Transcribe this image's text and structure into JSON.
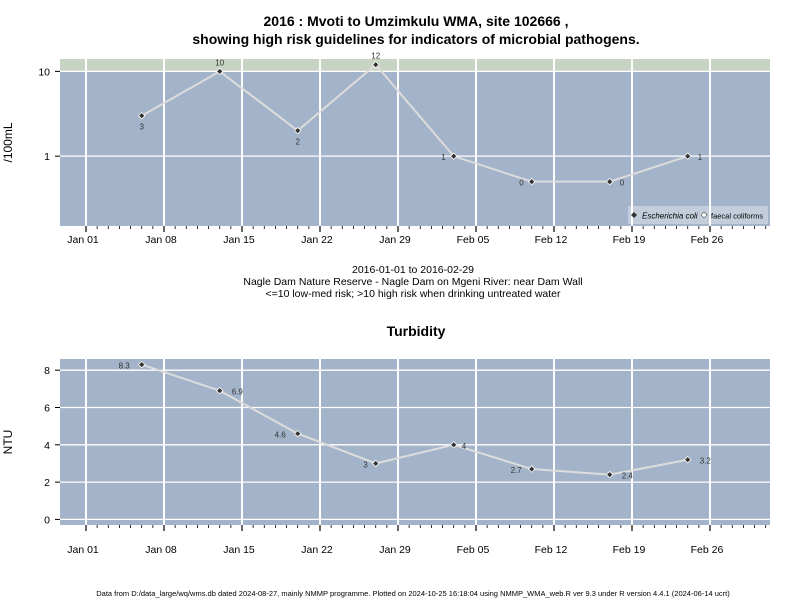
{
  "top": {
    "title_line1": "2016 : Mvoti to Umzimkulu WMA, site 102666 ,",
    "title_line2": "showing high risk guidelines for indicators of microbial pathogens.",
    "date_range": "2016-01-01 to 2016-02-29",
    "site_desc": "Nagle Dam Nature Reserve - Nagle Dam on Mgeni River: near Dam Wall",
    "risk_note": "<=10 low-med risk; >10 high risk when drinking untreated water"
  },
  "bottom": {
    "title": "Turbidity"
  },
  "footer": "Data from D:/data_large/wq/wms.db dated 2024-08-27, mainly NMMP programme. Plotted on 2024-10-25 16:18:04 using NMMP_WMA_web.R ver 9.3 under R version 4.4.1 (2024-06-14 ucrt)",
  "colors": {
    "panel_bg": "#a3b3c9",
    "risk_band": "#c8d4c3",
    "grid": "#ffffff",
    "line": "#dcdcdc",
    "point": "#333333"
  },
  "chart_data": [
    {
      "type": "line",
      "ylabel": "/100mL",
      "y_scale": "log",
      "y_ticks": [
        1,
        10
      ],
      "ylim": [
        0.15,
        14
      ],
      "high_risk_threshold": 10,
      "x_ticks": [
        "Jan 01",
        "Jan 08",
        "Jan 15",
        "Jan 22",
        "Jan 29",
        "Feb 05",
        "Feb 12",
        "Feb 19",
        "Feb 26"
      ],
      "xlim": [
        "2016-01-01",
        "2016-02-29"
      ],
      "series": [
        {
          "name": "Escherichia coli",
          "x": [
            "2016-01-06",
            "2016-01-13",
            "2016-01-20",
            "2016-01-27",
            "2016-02-03",
            "2016-02-10",
            "2016-02-17",
            "2016-02-24"
          ],
          "values": [
            3,
            10,
            2,
            12,
            1,
            0,
            0,
            1
          ],
          "value_labels": [
            "3",
            "10",
            "2",
            "12",
            "1",
            "0",
            "0",
            "1"
          ]
        }
      ],
      "legend": {
        "placement": "bottom-right",
        "entries": [
          "Escherichia coli",
          "faecal coliforms"
        ]
      }
    },
    {
      "type": "line",
      "title": "Turbidity",
      "ylabel": "NTU",
      "y_ticks": [
        0,
        2,
        4,
        6,
        8
      ],
      "ylim": [
        -0.3,
        8.6
      ],
      "x_ticks": [
        "Jan 01",
        "Jan 08",
        "Jan 15",
        "Jan 22",
        "Jan 29",
        "Feb 05",
        "Feb 12",
        "Feb 19",
        "Feb 26"
      ],
      "xlim": [
        "2016-01-01",
        "2016-02-29"
      ],
      "series": [
        {
          "x": [
            "2016-01-06",
            "2016-01-13",
            "2016-01-20",
            "2016-01-27",
            "2016-02-03",
            "2016-02-10",
            "2016-02-17",
            "2016-02-24"
          ],
          "values": [
            8.3,
            6.9,
            4.6,
            3,
            4,
            2.7,
            2.4,
            3.2
          ],
          "value_labels": [
            "8.3",
            "6.9",
            "4.6",
            "3",
            "4",
            "2.7",
            "2.4",
            "3.2"
          ]
        }
      ]
    }
  ]
}
